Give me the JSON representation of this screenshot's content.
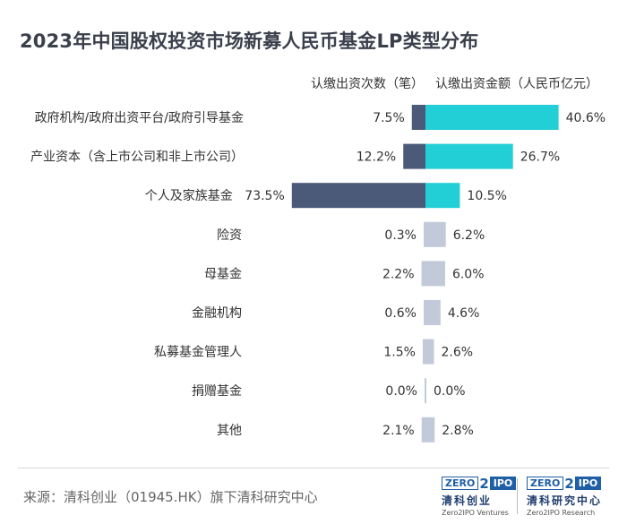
{
  "title": "2023年中国股权投资市场新募人民币基金LP类型分布",
  "headers": {
    "count": "认缴出资次数（笔）",
    "amount": "认缴出资金额（人民币亿元）"
  },
  "colors": {
    "count_major": "#4a5a78",
    "amount_major": "#22cfd6",
    "minor": "#c2cad9"
  },
  "chart_data": {
    "type": "bar",
    "layout": "butterfly",
    "categories": [
      "政府机构/政府出资平台/政府引导基金",
      "产业资本（含上市公司和非上市公司）",
      "个人及家族基金",
      "险资",
      "母基金",
      "金融机构",
      "私募基金管理人",
      "捐赠基金",
      "其他"
    ],
    "series": [
      {
        "name": "认缴出资次数（笔）",
        "values": [
          7.5,
          12.2,
          73.5,
          0.3,
          2.2,
          0.6,
          1.5,
          0.0,
          2.1
        ],
        "labels": [
          "7.5%",
          "12.2%",
          "73.5%",
          "0.3%",
          "2.2%",
          "0.6%",
          "1.5%",
          "0.0%",
          "2.1%"
        ]
      },
      {
        "name": "认缴出资金额（人民币亿元）",
        "values": [
          40.6,
          26.7,
          10.5,
          6.2,
          6.0,
          4.6,
          2.6,
          0.0,
          2.8
        ],
        "labels": [
          "40.6%",
          "26.7%",
          "10.5%",
          "6.2%",
          "6.0%",
          "4.6%",
          "2.6%",
          "0.0%",
          "2.8%"
        ]
      }
    ],
    "unit": "%"
  },
  "footer": {
    "source": "来源：清科创业（01945.HK）旗下清科研究中心",
    "logo1": {
      "zero": "ZERO",
      "two": "2",
      "ipo": "IPO",
      "cn": "清科创业",
      "en": "Zero2IPO Ventures"
    },
    "logo2": {
      "zero": "ZERO",
      "two": "2",
      "ipo": "IPO",
      "cn": "清科研究中心",
      "en": "Zero2IPO Research"
    }
  }
}
